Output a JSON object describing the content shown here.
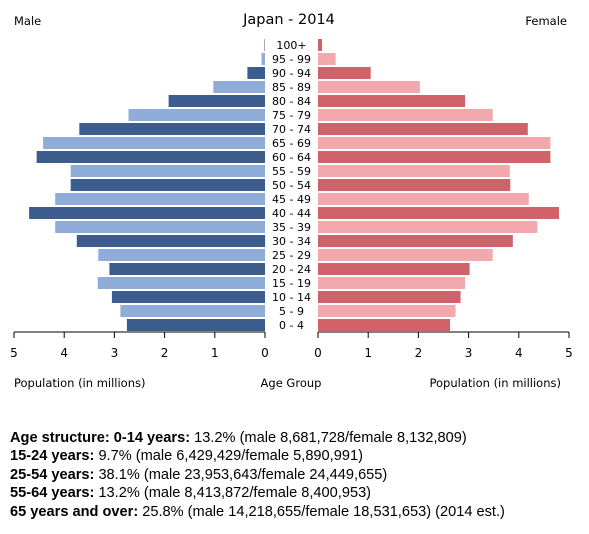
{
  "chart_data": {
    "type": "bar",
    "title": "Japan - 2014",
    "left_label": "Male",
    "right_label": "Female",
    "xlabel_left": "Population (in millions)",
    "xlabel_center": "Age Group",
    "xlabel_right": "Population (in millions)",
    "xlim": [
      0,
      5
    ],
    "x_ticks": [
      "5",
      "4",
      "3",
      "2",
      "1",
      "0",
      "0",
      "1",
      "2",
      "3",
      "4",
      "5"
    ],
    "grid": false,
    "legend": "none",
    "categories": [
      "0 - 4",
      "5 - 9",
      "10 - 14",
      "15 - 19",
      "20 - 24",
      "25 - 29",
      "30 - 34",
      "35 - 39",
      "40 - 44",
      "45 - 49",
      "50 - 54",
      "55 - 59",
      "60 - 64",
      "65 - 69",
      "70 - 74",
      "75 - 79",
      "80 - 84",
      "85 - 89",
      "90 - 94",
      "95 - 99",
      "100+"
    ],
    "series": [
      {
        "name": "Male",
        "values": [
          2.75,
          2.88,
          3.05,
          3.33,
          3.1,
          3.32,
          3.75,
          4.18,
          4.7,
          4.18,
          3.87,
          3.87,
          4.55,
          4.42,
          3.7,
          2.72,
          1.92,
          1.03,
          0.35,
          0.07,
          0.01
        ]
      },
      {
        "name": "Female",
        "values": [
          2.63,
          2.74,
          2.84,
          2.93,
          3.02,
          3.48,
          3.88,
          4.37,
          4.8,
          4.2,
          3.83,
          3.82,
          4.63,
          4.63,
          4.18,
          3.48,
          2.93,
          2.03,
          1.05,
          0.35,
          0.08
        ]
      }
    ],
    "colors": {
      "male_dark": "#3d5c8e",
      "male_light": "#8fadd8",
      "female_dark": "#d06369",
      "female_light": "#f3a8ae"
    }
  },
  "stats": [
    {
      "label": "Age structure: 0-14 years:",
      "text": " 13.2% (male 8,681,728/female 8,132,809)"
    },
    {
      "label": "15-24 years:",
      "text": " 9.7% (male 6,429,429/female 5,890,991)"
    },
    {
      "label": "25-54 years:",
      "text": " 38.1% (male 23,953,643/female 24,449,655)"
    },
    {
      "label": "55-64 years:",
      "text": " 13.2% (male 8,413,872/female 8,400,953)"
    },
    {
      "label": "65 years and over:",
      "text": " 25.8% (male 14,218,655/female 18,531,653) (2014 est.)"
    }
  ]
}
